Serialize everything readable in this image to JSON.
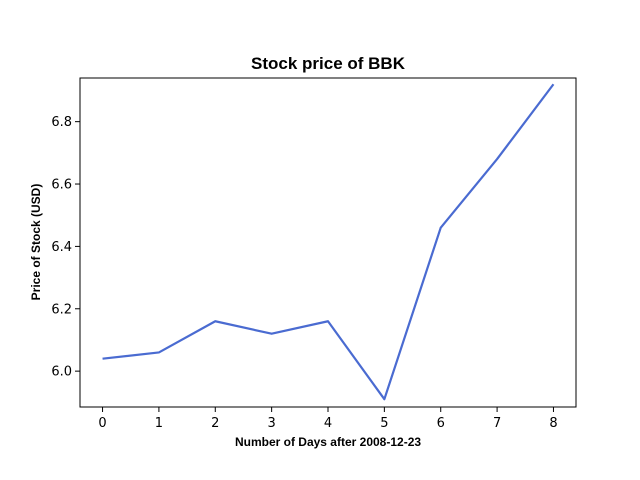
{
  "chart_data": {
    "type": "line",
    "title": "Stock price of BBK",
    "xlabel": "Number of Days after 2008-12-23",
    "ylabel": "Price of Stock (USD)",
    "x": [
      0,
      1,
      2,
      3,
      4,
      5,
      6,
      7,
      8
    ],
    "x_ticks": [
      "0",
      "1",
      "2",
      "3",
      "4",
      "5",
      "6",
      "7",
      "8"
    ],
    "y_ticks": [
      "6.0",
      "6.2",
      "6.4",
      "6.6",
      "6.8"
    ],
    "xlim": [
      -0.4,
      8.4
    ],
    "ylim": [
      5.885,
      6.94
    ],
    "grid": false,
    "series": [
      {
        "values": [
          6.04,
          6.06,
          6.16,
          6.12,
          6.16,
          5.91,
          6.46,
          6.68,
          6.92
        ],
        "color": "#4a6bd1"
      }
    ]
  }
}
